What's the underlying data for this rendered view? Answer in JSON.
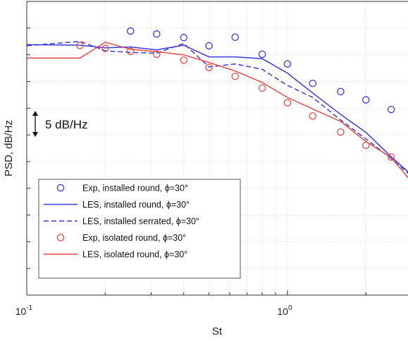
{
  "chart_data": {
    "type": "line",
    "title": "",
    "xlabel": "St",
    "ylabel": "PSD, dB/Hz",
    "xscale": "log",
    "xlim": [
      0.1,
      2.9
    ],
    "ylim": [
      0,
      100
    ],
    "grid": true,
    "x_ticks": [
      {
        "value": 0.1,
        "base": "10",
        "exp": "-1"
      },
      {
        "value": 1,
        "base": "10",
        "exp": "0"
      }
    ],
    "scale_annotation": "5 dB/Hz",
    "legend_position": "bottom-left",
    "series": [
      {
        "name": "Exp, installed round, ϕ=30°",
        "style": "markers",
        "color": "#3a3adf",
        "x": [
          0.25,
          0.315,
          0.4,
          0.5,
          0.63,
          0.8,
          1.0,
          1.25,
          1.6,
          2.0,
          2.5
        ],
        "y": [
          89.9,
          88.9,
          87.7,
          84.9,
          87.8,
          82.0,
          78.7,
          72.1,
          69.3,
          66.5,
          63.2
        ]
      },
      {
        "name": "LES, installed round, ϕ=30°",
        "style": "solid",
        "color": "#3a3adf",
        "x": [
          0.1,
          0.16,
          0.2,
          0.25,
          0.315,
          0.4,
          0.5,
          0.63,
          0.8,
          1.0,
          1.25,
          1.6,
          2.0,
          2.5,
          2.9
        ],
        "y": [
          85.3,
          85.1,
          84.2,
          84.5,
          83.5,
          85.1,
          81.1,
          81.1,
          80.5,
          75.6,
          68.8,
          61.5,
          55.4,
          47.1,
          42.0
        ]
      },
      {
        "name": "LES, installed serrated, ϕ=30°",
        "style": "dashed",
        "color": "#3a3adf",
        "x": [
          0.1,
          0.16,
          0.2,
          0.25,
          0.315,
          0.4,
          0.5,
          0.63,
          0.8,
          1.0,
          1.25,
          1.6,
          2.0,
          2.5,
          2.9
        ],
        "y": [
          84.9,
          86.4,
          83.2,
          82.6,
          82.4,
          85.7,
          77.7,
          78.7,
          76.9,
          71.4,
          67.3,
          59.6,
          53.2,
          46.5,
          41.5
        ]
      },
      {
        "name": "Exp, isolated round, ϕ=30°",
        "style": "markers",
        "color": "#e84a4a",
        "x": [
          0.16,
          0.2,
          0.25,
          0.315,
          0.4,
          0.5,
          0.63,
          0.8,
          1.0,
          1.25,
          1.6,
          2.0,
          2.5
        ],
        "y": [
          85.0,
          84.0,
          83.0,
          82.0,
          80.0,
          77.5,
          74.5,
          70.5,
          65.5,
          61.0,
          55.5,
          51.0,
          47.0
        ]
      },
      {
        "name": "LES, isolated round, ϕ=30°",
        "style": "solid",
        "color": "#e84a4a",
        "x": [
          0.1,
          0.16,
          0.2,
          0.25,
          0.315,
          0.4,
          0.5,
          0.63,
          0.8,
          1.0,
          1.25,
          1.6,
          2.0,
          2.5,
          2.9
        ],
        "y": [
          80.7,
          80.7,
          86.1,
          83.7,
          82.9,
          81.8,
          79.2,
          76.3,
          72.4,
          67.3,
          63.4,
          59.1,
          52.3,
          46.8,
          40.0
        ]
      }
    ]
  }
}
